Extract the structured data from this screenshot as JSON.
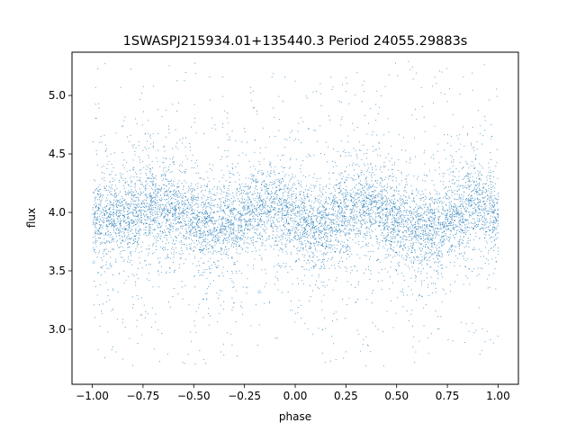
{
  "chart_data": {
    "type": "scatter",
    "title": "1SWASPJ215934.01+135440.3 Period 24055.29883s",
    "xlabel": "phase",
    "ylabel": "flux",
    "xlim": [
      -1.1,
      1.1
    ],
    "ylim": [
      2.53,
      5.37
    ],
    "x_ticks": [
      "−1.00",
      "−0.75",
      "−0.50",
      "−0.25",
      "0.00",
      "0.25",
      "0.50",
      "0.75",
      "1.00"
    ],
    "x_tick_values": [
      -1.0,
      -0.75,
      -0.5,
      -0.25,
      0.0,
      0.25,
      0.5,
      0.75,
      1.0
    ],
    "y_ticks": [
      "3.0",
      "3.5",
      "4.0",
      "4.5",
      "5.0"
    ],
    "y_tick_values": [
      3.0,
      3.5,
      4.0,
      4.5,
      5.0
    ],
    "grid": false,
    "legend": "none",
    "marker_color": "#1f77b4",
    "series": [
      {
        "x": [
          -1.0,
          -0.9,
          -0.8,
          -0.7,
          -0.6,
          -0.5,
          -0.4,
          -0.3,
          -0.2,
          -0.15,
          -0.1,
          0.0,
          0.1,
          0.2,
          0.3,
          0.35,
          0.4,
          0.5,
          0.6,
          0.65,
          0.7,
          0.8,
          0.85,
          0.9,
          1.0
        ],
        "values": [
          3.95,
          3.96,
          3.99,
          4.05,
          4.04,
          3.95,
          3.87,
          3.93,
          4.05,
          4.08,
          4.06,
          3.95,
          3.88,
          3.95,
          4.06,
          4.08,
          4.05,
          3.93,
          3.85,
          3.84,
          3.88,
          4.02,
          4.06,
          4.05,
          4.0
        ],
        "spread_core": 0.17,
        "spread_outer": [
          2.68,
          5.3
        ]
      }
    ]
  }
}
